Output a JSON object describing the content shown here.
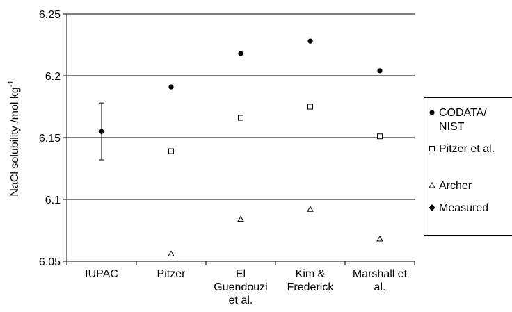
{
  "chart_data": {
    "type": "scatter",
    "ylabel": "NaCl solubility /mol kg",
    "ylabel_sup": "-1",
    "ylim": [
      6.05,
      6.25
    ],
    "yticks": [
      "6.05",
      "6.1",
      "6.15",
      "6.2",
      "6.25"
    ],
    "ytick_values": [
      6.05,
      6.1,
      6.15,
      6.2,
      6.25
    ],
    "grid": "horizontal",
    "legend_position": "right",
    "categories": [
      [
        "IUPAC"
      ],
      [
        "Pitzer"
      ],
      [
        "El",
        "Guendouzi",
        "et al."
      ],
      [
        "Kim &",
        "Frederick"
      ],
      [
        "Marshall et",
        "al."
      ]
    ],
    "series": [
      {
        "name_lines": [
          "CODATA/",
          "NIST"
        ],
        "marker": "filled-circle",
        "values": [
          null,
          6.191,
          6.218,
          6.228,
          6.204
        ]
      },
      {
        "name_lines": [
          "Pitzer et al."
        ],
        "marker": "open-square",
        "values": [
          null,
          6.139,
          6.166,
          6.175,
          6.151
        ]
      },
      {
        "name_lines": [
          "Archer"
        ],
        "marker": "open-triangle",
        "values": [
          null,
          6.056,
          6.084,
          6.092,
          6.068
        ]
      },
      {
        "name_lines": [
          "Measured"
        ],
        "marker": "filled-diamond",
        "values": [
          6.155,
          null,
          null,
          null,
          null
        ],
        "error": [
          0.023,
          null,
          null,
          null,
          null
        ]
      }
    ]
  }
}
